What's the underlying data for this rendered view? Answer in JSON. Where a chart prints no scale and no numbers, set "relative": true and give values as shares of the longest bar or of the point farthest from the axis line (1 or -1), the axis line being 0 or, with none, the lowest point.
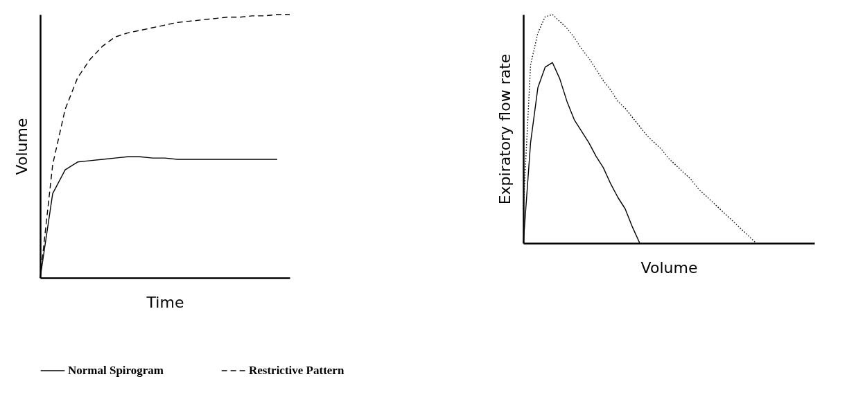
{
  "chart_data": [
    {
      "type": "line",
      "xlabel": "Time",
      "ylabel": "Volume",
      "relative": true,
      "categories": [
        null,
        null,
        null,
        null,
        null,
        null,
        null,
        null,
        null,
        null,
        null,
        null,
        null,
        null,
        null,
        null,
        null,
        null,
        null,
        null,
        null
      ],
      "tick_labels": false,
      "grid": false,
      "legend": "bottom",
      "series": [
        {
          "name": "Normal Spirogram",
          "color": "#000000",
          "line_style": "solid",
          "values": [
            0,
            0.32,
            0.41,
            0.44,
            0.445,
            0.45,
            0.455,
            0.46,
            0.46,
            0.455,
            0.455,
            0.45,
            0.45,
            0.45,
            0.45,
            0.45,
            0.45,
            0.45,
            0.45,
            0.45,
            null
          ]
        },
        {
          "name": "Restrictive Pattern",
          "color": "#000000",
          "line_style": "dashed",
          "values": [
            0,
            0.43,
            0.64,
            0.76,
            0.83,
            0.88,
            0.915,
            0.93,
            0.94,
            0.95,
            0.96,
            0.97,
            0.975,
            0.98,
            0.985,
            0.99,
            0.99,
            0.995,
            0.995,
            1,
            1
          ]
        }
      ]
    },
    {
      "type": "line",
      "xlabel": "Volume",
      "ylabel": "Expiratory flow rate",
      "relative": true,
      "categories": [
        null,
        null,
        null,
        null,
        null,
        null,
        null,
        null,
        null,
        null,
        null,
        null,
        null,
        null,
        null,
        null,
        null,
        null,
        null,
        null,
        null,
        null,
        null,
        null,
        null,
        null,
        null,
        null,
        null,
        null,
        null,
        null,
        null,
        null,
        null,
        null,
        null,
        null,
        null,
        null,
        null
      ],
      "tick_labels": false,
      "grid": false,
      "series": [
        {
          "color": "#000000",
          "line_style": "solid",
          "values": [
            0,
            0.44,
            0.68,
            0.77,
            0.79,
            0.72,
            0.62,
            0.54,
            0.49,
            0.44,
            0.38,
            0.33,
            0.26,
            0.2,
            0.15,
            0.07,
            0,
            null,
            null,
            null,
            null,
            null,
            null,
            null,
            null,
            null,
            null,
            null,
            null,
            null,
            null,
            null,
            null,
            null,
            null,
            null,
            null,
            null,
            null,
            null,
            null
          ]
        },
        {
          "color": "#000000",
          "line_style": "dotted",
          "values": [
            0.15,
            0.78,
            0.92,
            0.99,
            1,
            0.97,
            0.94,
            0.9,
            0.85,
            0.81,
            0.76,
            0.71,
            0.67,
            0.62,
            0.59,
            0.55,
            0.51,
            0.47,
            0.44,
            0.41,
            0.37,
            0.34,
            0.31,
            0.28,
            0.24,
            0.21,
            0.18,
            0.15,
            0.12,
            0.09,
            0.06,
            0.03,
            0,
            null,
            null,
            null,
            null,
            null,
            null,
            null,
            null
          ]
        }
      ]
    }
  ]
}
